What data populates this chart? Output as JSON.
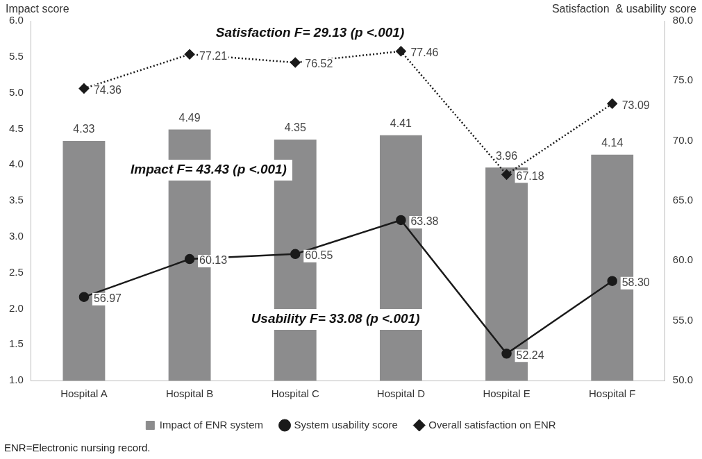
{
  "chart_data": {
    "type": "bar",
    "ylabel": "Impact score",
    "y2label": "Satisfaction  & usability score",
    "categories": [
      "Hospital A",
      "Hospital B",
      "Hospital C",
      "Hospital D",
      "Hospital E",
      "Hospital F"
    ],
    "series": [
      {
        "name": "Impact of ENR system",
        "color": "#8c8c8d",
        "values": [
          4.33,
          4.49,
          4.35,
          4.41,
          3.96,
          4.14
        ],
        "value_labels": [
          "4.33",
          "4.49",
          "4.35",
          "4.41",
          "3.96",
          "4.14"
        ]
      },
      {
        "name": "System usability score",
        "type": "line",
        "axis": "y2",
        "color": "#1a1a1a",
        "marker": "circle",
        "line_style": "solid",
        "values": [
          56.97,
          60.13,
          60.55,
          63.38,
          52.24,
          58.3
        ],
        "value_labels": [
          "56.97",
          "60.13",
          "60.55",
          "63.38",
          "52.24",
          "58.30"
        ]
      },
      {
        "name": "Overall satisfaction on ENR",
        "type": "line",
        "axis": "y2",
        "color": "#1a1a1a",
        "marker": "diamond",
        "line_style": "dotted",
        "values": [
          74.36,
          77.21,
          76.52,
          77.46,
          67.18,
          73.09
        ],
        "value_labels": [
          "74.36",
          "77.21",
          "76.52",
          "77.46",
          "67.18",
          "73.09"
        ]
      }
    ],
    "ylim": [
      1,
      6
    ],
    "yticks": [
      {
        "value": 1,
        "label": "1.0"
      },
      {
        "value": 1.5,
        "label": "1.5"
      },
      {
        "value": 2,
        "label": "2.0"
      },
      {
        "value": 2.5,
        "label": "2.5"
      },
      {
        "value": 3,
        "label": "3.0"
      },
      {
        "value": 3.5,
        "label": "3.5"
      },
      {
        "value": 4,
        "label": "4.0"
      },
      {
        "value": 4.5,
        "label": "4.5"
      },
      {
        "value": 5,
        "label": "5.0"
      },
      {
        "value": 5.5,
        "label": "5.5"
      },
      {
        "value": 6,
        "label": "6.0"
      }
    ],
    "y2lim": [
      50,
      80
    ],
    "y2ticks": [
      {
        "value": 50,
        "label": "50.0"
      },
      {
        "value": 55,
        "label": "55.0"
      },
      {
        "value": 60,
        "label": "60.0"
      },
      {
        "value": 65,
        "label": "65.0"
      },
      {
        "value": 70,
        "label": "70.0"
      },
      {
        "value": 75,
        "label": "75.0"
      },
      {
        "value": 80,
        "label": "80.0"
      }
    ],
    "grid": false,
    "legend": "bottom",
    "annotations": [
      "Satisfaction F= 29.13 (p <.001)",
      "Impact F= 43.43 (p <.001)",
      "Usability F= 33.08 (p <.001)",
      "ENR=Electronic nursing record."
    ]
  }
}
